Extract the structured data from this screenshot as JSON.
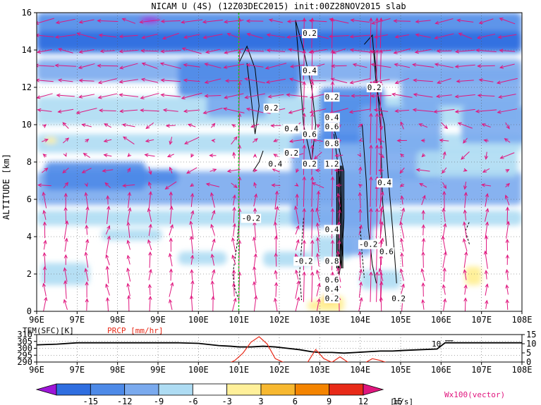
{
  "chart_data": {
    "type": "cross-section",
    "title": "NICAM U (4S) (12Z03DEC2015) init:00Z28NOV2015 slab",
    "main": {
      "ylabel": "ALTITUDE [km]",
      "xlim": [
        96,
        108
      ],
      "ylim": [
        0,
        16
      ],
      "x_ticks": [
        "96E",
        "97E",
        "98E",
        "99E",
        "100E",
        "101E",
        "102E",
        "103E",
        "104E",
        "105E",
        "106E",
        "107E",
        "108E"
      ],
      "y_ticks": [
        "0",
        "2",
        "4",
        "6",
        "8",
        "10",
        "12",
        "14",
        "16"
      ],
      "grid": true,
      "contour_labels": [
        {
          "x": 101.8,
          "y": 10.9,
          "text": "0.2"
        },
        {
          "x": 102.3,
          "y": 9.8,
          "text": "0.4"
        },
        {
          "x": 102.3,
          "y": 8.5,
          "text": "0.2"
        },
        {
          "x": 101.9,
          "y": 7.9,
          "text": "0.4"
        },
        {
          "x": 102.75,
          "y": 14.9,
          "text": "0.2"
        },
        {
          "x": 102.75,
          "y": 12.9,
          "text": "0.4"
        },
        {
          "x": 102.75,
          "y": 9.5,
          "text": "0.6"
        },
        {
          "x": 102.75,
          "y": 7.9,
          "text": "0.2"
        },
        {
          "x": 103.3,
          "y": 11.5,
          "text": "0.2"
        },
        {
          "x": 103.3,
          "y": 10.4,
          "text": "0.4"
        },
        {
          "x": 103.3,
          "y": 9.9,
          "text": "0.6"
        },
        {
          "x": 103.3,
          "y": 9.0,
          "text": "0.8"
        },
        {
          "x": 103.3,
          "y": 7.9,
          "text": "1.2"
        },
        {
          "x": 104.35,
          "y": 12.0,
          "text": "0.2"
        },
        {
          "x": 104.6,
          "y": 6.9,
          "text": "0.4"
        },
        {
          "x": 104.2,
          "y": 3.6,
          "text": "-0.2"
        },
        {
          "x": 104.65,
          "y": 3.2,
          "text": "0.6"
        },
        {
          "x": 101.3,
          "y": 5.0,
          "text": "-0.2"
        },
        {
          "x": 102.6,
          "y": 2.7,
          "text": "-0.2"
        },
        {
          "x": 103.3,
          "y": 2.7,
          "text": "0.8"
        },
        {
          "x": 103.3,
          "y": 1.7,
          "text": "0.6"
        },
        {
          "x": 103.3,
          "y": 1.2,
          "text": "0.4"
        },
        {
          "x": 103.3,
          "y": 0.7,
          "text": "0.2"
        },
        {
          "x": 103.3,
          "y": 4.4,
          "text": "0.4"
        },
        {
          "x": 104.95,
          "y": 0.7,
          "text": "0.2"
        }
      ]
    },
    "sub": {
      "label_left": "TEM(SFC)[K]",
      "label_right": "PRCP [mm/hr]",
      "left_ticks": [
        "310",
        "305",
        "300",
        "295",
        "290"
      ],
      "right_ticks": [
        "15",
        "10",
        "5",
        "0"
      ],
      "annotation": "10",
      "x_ticks": [
        "96E",
        "97E",
        "98E",
        "99E",
        "100E",
        "101E",
        "102E",
        "103E",
        "104E",
        "105E",
        "106E",
        "107E",
        "108E"
      ],
      "temperature": {
        "x": [
          96,
          96.5,
          97,
          97.5,
          98,
          98.5,
          99,
          99.5,
          100,
          100.5,
          100.8,
          101,
          101.3,
          101.6,
          101.9,
          102.2,
          102.5,
          102.8,
          103.0,
          103.3,
          103.6,
          103.9,
          104.2,
          104.5,
          104.8,
          105.1,
          105.5,
          105.9,
          106.1,
          106.3,
          107,
          108
        ],
        "y": [
          302.5,
          303,
          304,
          304,
          304,
          304,
          304,
          304,
          303.6,
          302,
          301.5,
          301,
          301,
          301.5,
          301,
          300,
          299,
          297.5,
          297,
          297,
          296.5,
          297,
          297.5,
          298,
          298,
          298.5,
          299,
          299.5,
          304,
          304,
          304,
          304
        ]
      },
      "precipitation": {
        "x": [
          96,
          100.7,
          100.9,
          101.1,
          101.3,
          101.5,
          101.7,
          101.9,
          102.1,
          102.3,
          102.5,
          102.7,
          102.9,
          103.1,
          103.3,
          103.5,
          103.7,
          103.9,
          104.1,
          104.3,
          104.5,
          104.7,
          105,
          108
        ],
        "y": [
          0,
          0,
          2,
          6,
          12,
          15,
          11,
          3,
          1,
          0.5,
          0.5,
          1,
          8,
          3,
          1,
          4,
          1,
          0.5,
          0.5,
          3,
          2,
          0.5,
          0,
          0
        ]
      }
    },
    "colorbar": {
      "labels": [
        "-15",
        "-12",
        "-9",
        "-6",
        "-3",
        "3",
        "6",
        "9",
        "12",
        "15"
      ],
      "unit": "[m/s]",
      "colors": [
        "#9e16d8",
        "#2f6ee0",
        "#4d8ae8",
        "#7aaaee",
        "#aedcf3",
        "#ffffff",
        "#fff09a",
        "#f7b830",
        "#f48400",
        "#e82a18",
        "#b80c1a"
      ],
      "vector_label": "Wx100(vector)"
    }
  }
}
